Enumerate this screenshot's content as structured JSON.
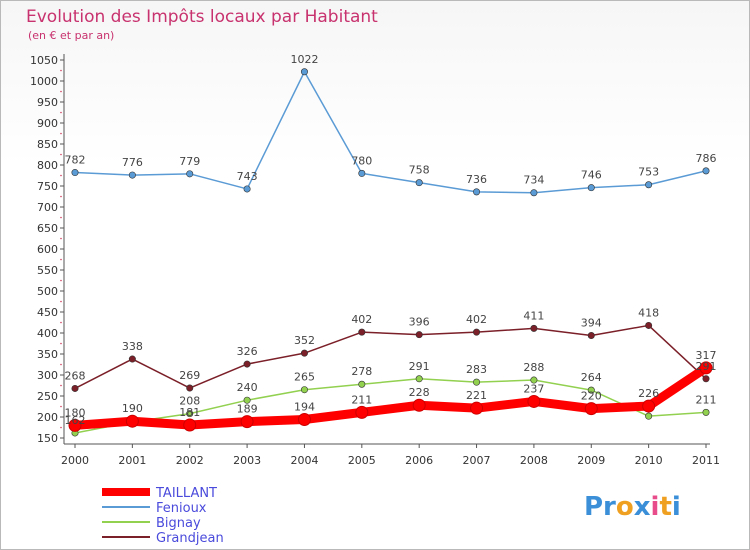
{
  "chart_data": {
    "type": "line",
    "title": "Evolution des Impôts locaux par Habitant",
    "subtitle": "(en € et par an)",
    "x": [
      "2000",
      "2001",
      "2002",
      "2003",
      "2004",
      "2005",
      "2006",
      "2007",
      "2008",
      "2009",
      "2010",
      "2011"
    ],
    "ylim": [
      150,
      1050
    ],
    "yticks": [
      150,
      200,
      250,
      300,
      350,
      400,
      450,
      500,
      550,
      600,
      650,
      700,
      750,
      800,
      850,
      900,
      950,
      1000,
      1050
    ],
    "grid": false,
    "legend_position": "bottom-left",
    "series": [
      {
        "name": "TAILLANT",
        "color": "#ff0000",
        "values": [
          180,
          190,
          181,
          189,
          194,
          211,
          228,
          221,
          237,
          220,
          226,
          317
        ],
        "labels": [
          "180",
          "190",
          "181",
          "189",
          "194",
          "211",
          "228",
          "221",
          "237",
          "220",
          "226",
          "317"
        ]
      },
      {
        "name": "Fenioux",
        "color": "#5b9bd5",
        "values": [
          782,
          776,
          779,
          743,
          1022,
          780,
          758,
          736,
          734,
          746,
          753,
          786
        ],
        "labels": [
          "782",
          "776",
          "779",
          "743",
          "1022",
          "780",
          "758",
          "736",
          "734",
          "746",
          "753",
          "786"
        ]
      },
      {
        "name": "Bignay",
        "color": "#92d050",
        "values": [
          162,
          188,
          208,
          240,
          265,
          278,
          291,
          283,
          288,
          264,
          202,
          211
        ],
        "labels": [
          "162",
          "",
          "208",
          "240",
          "265",
          "278",
          "291",
          "283",
          "288",
          "264",
          "",
          "211"
        ]
      },
      {
        "name": "Grandjean",
        "color": "#7b1f28",
        "values": [
          268,
          338,
          269,
          326,
          352,
          402,
          396,
          402,
          411,
          394,
          418,
          291
        ],
        "labels": [
          "268",
          "338",
          "269",
          "326",
          "352",
          "402",
          "396",
          "402",
          "411",
          "394",
          "418",
          "291"
        ]
      }
    ]
  },
  "brand": {
    "logo_text": "Proxiti"
  }
}
